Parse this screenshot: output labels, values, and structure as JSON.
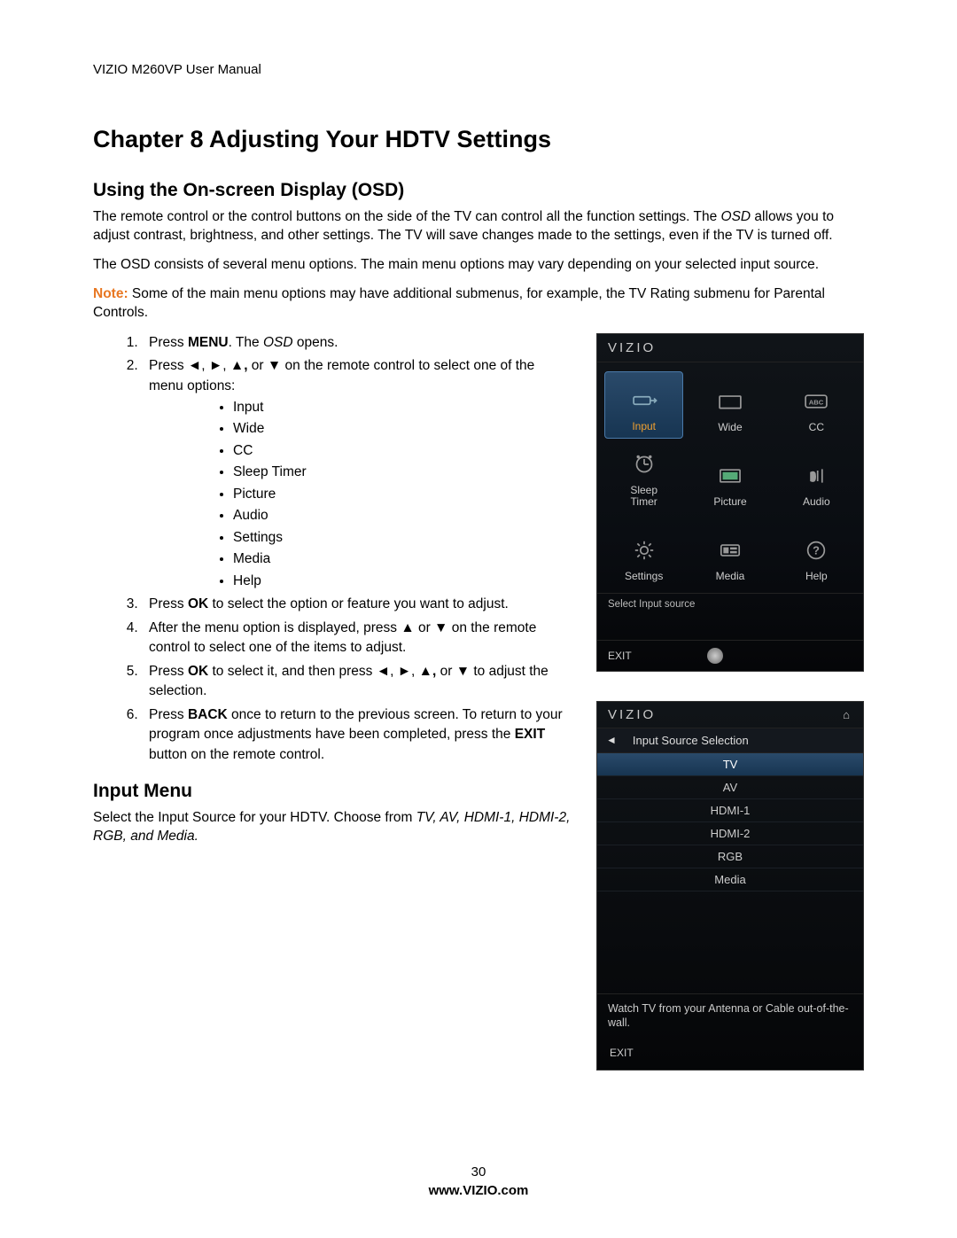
{
  "doc_header": "VIZIO M260VP User Manual",
  "chapter_title": "Chapter 8 Adjusting Your HDTV Settings",
  "section1_title": "Using the On-screen Display (OSD)",
  "p1_a": "The remote control or the control buttons on the side of the TV can control all the function settings. The ",
  "p1_osd": "OSD",
  "p1_b": " allows you to adjust contrast, brightness, and other settings. The TV will save changes made to the settings, even if the TV is turned off.",
  "p2": "The OSD consists of several menu options. The main menu options may vary depending on your selected input source.",
  "note_label": "Note:",
  "note_body": "  Some of the main menu options may have additional submenus, for example, the TV Rating submenu for Parental Controls.",
  "step1_a": "Press ",
  "step1_menu": "MENU",
  "step1_b": ". The ",
  "step1_osd": "OSD",
  "step1_c": " opens.",
  "step2_a": "Press ◄, ►, ▲",
  "step2_comma": ",",
  "step2_b": " or ▼ on the remote control to select one of the menu options:",
  "bullets": [
    "Input",
    "Wide",
    "CC",
    "Sleep Timer",
    "Picture",
    "Audio",
    "Settings",
    "Media",
    "Help"
  ],
  "step3_a": "Press ",
  "step3_ok": "OK",
  "step3_b": " to select the option or feature you want to adjust.",
  "step4": "After the menu option is displayed, press ▲ or ▼ on the remote control to select one of the items to adjust.",
  "step5_a": "Press ",
  "step5_ok": "OK",
  "step5_b": " to select it, and then press ◄, ►, ▲",
  "step5_comma": ",",
  "step5_c": " or ▼ to adjust the selection.",
  "step6_a": "Press ",
  "step6_back": "BACK",
  "step6_b": " once to return to the previous screen. To return to your program once adjustments have been completed, press the ",
  "step6_exit": "EXIT",
  "step6_c": " button on the remote control.",
  "section2_title": "Input Menu",
  "inputmenu_a": "Select the Input Source for your HDTV. Choose from ",
  "inputmenu_italic": "TV, AV, HDMI-1, HDMI-2, RGB, and Media.",
  "page_number": "30",
  "footer_url": "www.VIZIO.com",
  "osd": {
    "brand": "VIZIO",
    "cells": [
      {
        "label": "Input",
        "selected": true
      },
      {
        "label": "Wide",
        "selected": false
      },
      {
        "label": "CC",
        "selected": false
      },
      {
        "label": "Sleep\nTimer",
        "selected": false
      },
      {
        "label": "Picture",
        "selected": false
      },
      {
        "label": "Audio",
        "selected": false
      },
      {
        "label": "Settings",
        "selected": false
      },
      {
        "label": "Media",
        "selected": false
      },
      {
        "label": "Help",
        "selected": false
      }
    ],
    "status_text": "Select Input source",
    "exit": "EXIT"
  },
  "input_osd": {
    "brand": "VIZIO",
    "title": "Input Source Selection",
    "items": [
      {
        "label": "TV",
        "selected": true
      },
      {
        "label": "AV",
        "selected": false
      },
      {
        "label": "HDMI-1",
        "selected": false
      },
      {
        "label": "HDMI-2",
        "selected": false
      },
      {
        "label": "RGB",
        "selected": false
      },
      {
        "label": "Media",
        "selected": false
      }
    ],
    "desc": "Watch TV from your Antenna or Cable out-of-the-wall.",
    "exit": "EXIT"
  },
  "colors": {
    "note_orange": "#e87722",
    "osd_bg_top": "#101418",
    "osd_bg_bottom": "#050608",
    "osd_selected_top": "#2a4a6a",
    "osd_selected_bottom": "#173552",
    "osd_selected_label": "#f0a030",
    "osd_text": "#cccccc",
    "osd_border": "#333333"
  }
}
